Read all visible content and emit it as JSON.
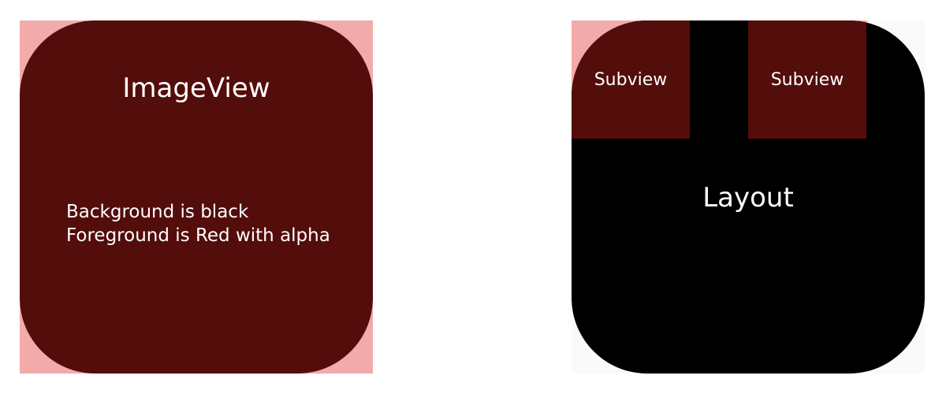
{
  "imageview": {
    "title": "ImageView",
    "line1": "Background is black",
    "line2": "Foreground is Red with alpha"
  },
  "layout": {
    "title": "Layout",
    "subviews": [
      {
        "label": "Subview"
      },
      {
        "label": "Subview"
      }
    ]
  },
  "colors": {
    "pink": "#f2aaab",
    "dark_red": "#530d0a",
    "black": "#000000",
    "white": "#ffffff"
  }
}
